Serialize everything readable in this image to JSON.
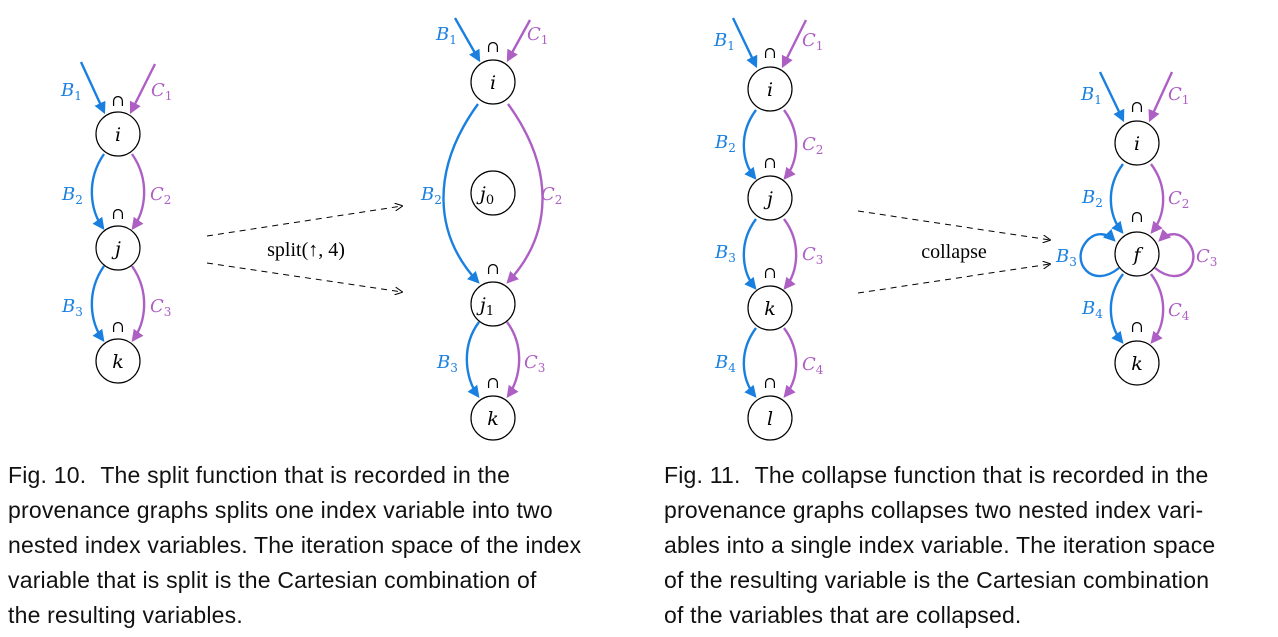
{
  "colors": {
    "blue": "#1a80e0",
    "purple": "#ad5fc4",
    "node_stroke": "#000000"
  },
  "intersection_symbol": "∩",
  "figure10": {
    "left_graph": {
      "nodes": [
        "i",
        "j",
        "k"
      ],
      "blue_edges": [
        [
          "B",
          "1"
        ],
        [
          "B",
          "2"
        ],
        [
          "B",
          "3"
        ]
      ],
      "purple_edges": [
        [
          "C",
          "1"
        ],
        [
          "C",
          "2"
        ],
        [
          "C",
          "3"
        ]
      ]
    },
    "transform_label": "split(↑, 4)",
    "right_graph": {
      "nodes": [
        "i",
        "j",
        "0",
        "j",
        "1",
        "k"
      ],
      "blue_edges": [
        [
          "B",
          "1"
        ],
        [
          "B",
          "2"
        ],
        [
          "B",
          "3"
        ]
      ],
      "purple_edges": [
        [
          "C",
          "1"
        ],
        [
          "C",
          "2"
        ],
        [
          "C",
          "3"
        ]
      ]
    },
    "caption": {
      "label": "Fig. 10.",
      "lines": [
        "The split function that is recorded in the",
        "provenance graphs splits one index variable into two",
        "nested index variables. The iteration space of the index",
        "variable that is split is the Cartesian combination of",
        "the resulting variables."
      ]
    }
  },
  "figure11": {
    "left_graph": {
      "nodes": [
        "i",
        "j",
        "k",
        "l"
      ],
      "blue_edges": [
        [
          "B",
          "1"
        ],
        [
          "B",
          "2"
        ],
        [
          "B",
          "3"
        ],
        [
          "B",
          "4"
        ]
      ],
      "purple_edges": [
        [
          "C",
          "1"
        ],
        [
          "C",
          "2"
        ],
        [
          "C",
          "3"
        ],
        [
          "C",
          "4"
        ]
      ]
    },
    "transform_label": "collapse",
    "right_graph": {
      "nodes": [
        "i",
        "f",
        "k"
      ],
      "blue_edges": [
        [
          "B",
          "1"
        ],
        [
          "B",
          "2"
        ],
        [
          "B",
          "3"
        ],
        [
          "B",
          "4"
        ]
      ],
      "purple_edges": [
        [
          "C",
          "1"
        ],
        [
          "C",
          "2"
        ],
        [
          "C",
          "3"
        ],
        [
          "C",
          "4"
        ]
      ]
    },
    "caption": {
      "label": "Fig. 11.",
      "lines": [
        "The collapse function that is recorded in the",
        "provenance graphs collapses two nested index vari-",
        "ables into a single index variable. The iteration space",
        "of the resulting variable is the Cartesian combination",
        "of the variables that are collapsed."
      ]
    }
  }
}
